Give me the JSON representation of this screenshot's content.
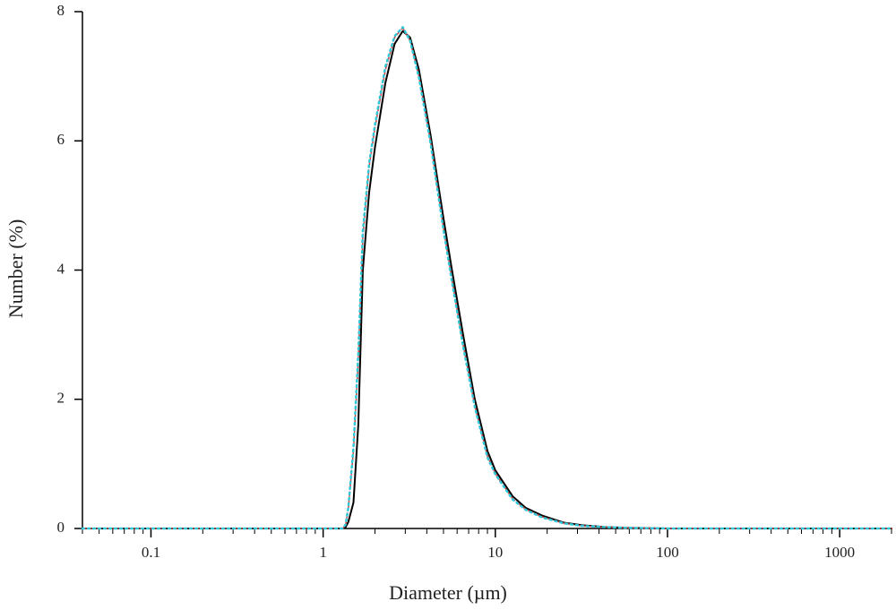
{
  "chart_data": {
    "type": "line",
    "xlabel": "Diameter (µm)",
    "ylabel": "Number (%)",
    "xscale": "log",
    "minor_ticks": true,
    "x": [
      0.04,
      0.1,
      1,
      1.3,
      1.35,
      1.4,
      1.5,
      1.6,
      1.7,
      1.85,
      2,
      2.3,
      2.6,
      2.9,
      3.2,
      3.6,
      4.2,
      5,
      5.6,
      6.5,
      7.6,
      9,
      10,
      12.6,
      15,
      18.7,
      25,
      32,
      45,
      58,
      100,
      1000,
      2000
    ],
    "series": [
      {
        "color": "#000000",
        "dash": "none",
        "width": 2,
        "values": [
          0,
          0,
          0,
          0,
          0.02,
          0.1,
          0.4,
          1.6,
          4,
          5.2,
          5.9,
          6.9,
          7.5,
          7.7,
          7.6,
          7.1,
          6.1,
          4.8,
          4,
          3,
          2,
          1.2,
          0.9,
          0.5,
          0.32,
          0.2,
          0.09,
          0.05,
          0.02,
          0.01,
          0,
          0,
          0
        ]
      },
      {
        "color": "#e03030",
        "dash": "5 3",
        "width": 1.5,
        "values": [
          0,
          0,
          0,
          0,
          0.05,
          0.3,
          1.2,
          2.6,
          4.5,
          5.6,
          6.2,
          7.1,
          7.6,
          7.75,
          7.55,
          7,
          6,
          4.65,
          3.85,
          2.85,
          1.9,
          1.12,
          0.85,
          0.46,
          0.3,
          0.18,
          0.08,
          0.04,
          0.02,
          0.01,
          0,
          0,
          0
        ]
      },
      {
        "color": "#30c8d8",
        "dash": "2 4",
        "width": 2.5,
        "values": [
          0,
          0,
          0,
          0,
          0.06,
          0.32,
          1.25,
          2.7,
          4.6,
          5.65,
          6.25,
          7.15,
          7.62,
          7.76,
          7.55,
          6.98,
          5.97,
          4.62,
          3.82,
          2.82,
          1.88,
          1.1,
          0.84,
          0.45,
          0.29,
          0.17,
          0.08,
          0.04,
          0.02,
          0.01,
          0,
          0,
          0
        ]
      }
    ],
    "xlim": [
      0.04,
      2000
    ],
    "ylim": [
      0,
      8
    ],
    "xticks": [
      0.1,
      1,
      10,
      100,
      1000
    ],
    "yticks": [
      0,
      2,
      4,
      6,
      8
    ],
    "grid": false
  }
}
